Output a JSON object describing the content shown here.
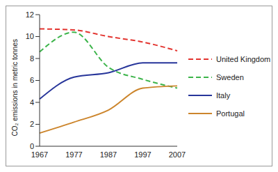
{
  "chart_data": {
    "type": "line",
    "y_label": "CO₂ emissions in metric tonnes",
    "categories": [
      "1967",
      "1977",
      "1987",
      "1997",
      "2007"
    ],
    "series": [
      {
        "name": "United Kingdom",
        "color": "#e3342f",
        "line_style": "dashed",
        "values": [
          10.7,
          10.6,
          10.0,
          9.5,
          8.7
        ]
      },
      {
        "name": "Sweden",
        "color": "#3cb44a",
        "line_style": "dashed",
        "values": [
          8.6,
          10.4,
          7.2,
          6.1,
          5.3
        ]
      },
      {
        "name": "Italy",
        "color": "#27359a",
        "line_style": "solid",
        "values": [
          4.3,
          6.3,
          6.7,
          7.6,
          7.6
        ]
      },
      {
        "name": "Portugal",
        "color": "#cc852c",
        "line_style": "solid",
        "values": [
          1.2,
          2.2,
          3.3,
          5.3,
          5.5
        ]
      }
    ],
    "ylim": [
      0,
      12
    ],
    "yticks": [
      0,
      2,
      4,
      6,
      8,
      10,
      12
    ],
    "grid": false,
    "legend": "right"
  }
}
